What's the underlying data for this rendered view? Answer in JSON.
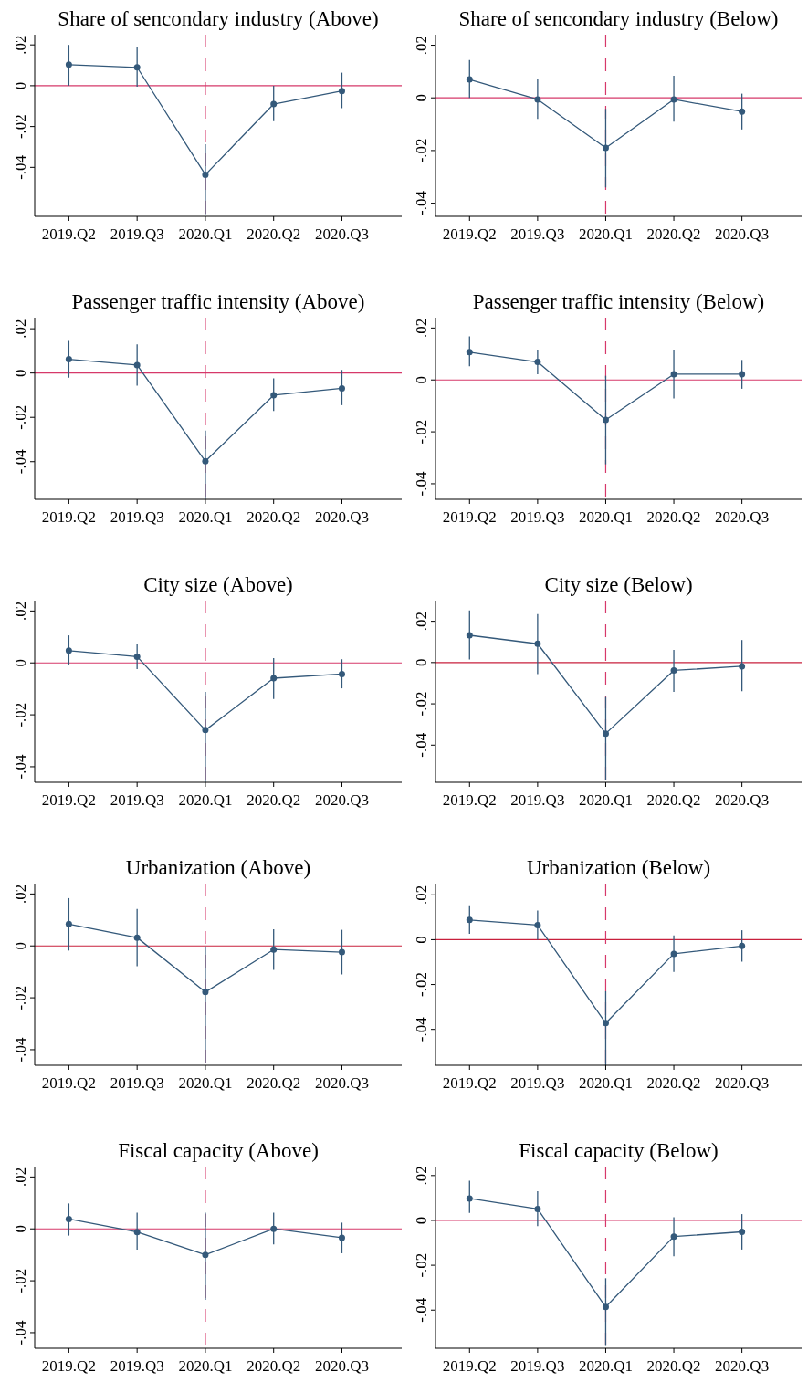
{
  "chart_data": [
    {
      "type": "line",
      "title": "Share of sencondary industry (Above)",
      "categories": [
        "2019.Q2",
        "2019.Q3",
        "2020.Q1",
        "2020.Q2",
        "2020.Q3"
      ],
      "ylim": [
        -0.064,
        0.025
      ],
      "yticks": [
        {
          "value": -0.04,
          "label": "-.04"
        },
        {
          "value": -0.02,
          "label": "-.02"
        },
        {
          "value": 0,
          "label": "0"
        },
        {
          "value": 0.02,
          "label": ".02"
        }
      ],
      "marker": "circle",
      "series": [
        {
          "color": "#34597a",
          "values": [
            0.0103,
            0.009,
            -0.0436,
            -0.009,
            -0.0026
          ],
          "errors": [
            [
              0,
              0.02
            ],
            [
              -0.0005,
              0.0187
            ],
            [
              -0.063,
              -0.0287
            ],
            [
              -0.0174,
              0
            ],
            [
              -0.011,
              0.0064
            ]
          ]
        }
      ],
      "ref_lines": [
        {
          "axis": "y",
          "value": 0,
          "color": "#d6386a"
        },
        {
          "axis": "x",
          "value": "2020.Q1",
          "color": "#d6386a",
          "line_style": "dashed"
        }
      ]
    },
    {
      "type": "line",
      "title": "Share of sencondary industry (Below)",
      "categories": [
        "2019.Q2",
        "2019.Q3",
        "2020.Q1",
        "2020.Q2",
        "2020.Q3"
      ],
      "ylim": [
        -0.045,
        0.024
      ],
      "yticks": [
        {
          "value": -0.04,
          "label": "-.04"
        },
        {
          "value": -0.02,
          "label": "-.02"
        },
        {
          "value": 0,
          "label": "0"
        },
        {
          "value": 0.02,
          "label": ".02"
        }
      ],
      "marker": "circle",
      "series": [
        {
          "color": "#34597a",
          "values": [
            0.007,
            -0.0006,
            -0.019,
            -0.0006,
            -0.0052
          ],
          "errors": [
            [
              0,
              0.0144
            ],
            [
              -0.008,
              0.007
            ],
            [
              -0.034,
              -0.0042
            ],
            [
              -0.009,
              0.0084
            ],
            [
              -0.012,
              0.0016
            ]
          ]
        }
      ],
      "ref_lines": [
        {
          "axis": "y",
          "value": 0,
          "color": "#d6386a"
        },
        {
          "axis": "x",
          "value": "2020.Q1",
          "color": "#d6386a",
          "line_style": "dashed"
        }
      ]
    },
    {
      "type": "line",
      "title": "Passenger traffic intensity (Above)",
      "categories": [
        "2019.Q2",
        "2019.Q3",
        "2020.Q1",
        "2020.Q2",
        "2020.Q3"
      ],
      "ylim": [
        -0.057,
        0.025
      ],
      "yticks": [
        {
          "value": -0.04,
          "label": "-.04"
        },
        {
          "value": -0.02,
          "label": "-.02"
        },
        {
          "value": 0,
          "label": "0"
        },
        {
          "value": 0.02,
          "label": ".02"
        }
      ],
      "marker": "circle",
      "series": [
        {
          "color": "#34597a",
          "values": [
            0.0062,
            0.0036,
            -0.0398,
            -0.01,
            -0.0069
          ],
          "errors": [
            [
              -0.0021,
              0.0145
            ],
            [
              -0.0057,
              0.0129
            ],
            [
              -0.057,
              -0.026
            ],
            [
              -0.0171,
              -0.0024
            ],
            [
              -0.0145,
              0.0014
            ]
          ]
        }
      ],
      "ref_lines": [
        {
          "axis": "y",
          "value": 0,
          "color": "#d6386a"
        },
        {
          "axis": "x",
          "value": "2020.Q1",
          "color": "#d6386a",
          "line_style": "dashed"
        }
      ]
    },
    {
      "type": "line",
      "title": "Passenger traffic intensity (Below)",
      "categories": [
        "2019.Q2",
        "2019.Q3",
        "2020.Q1",
        "2020.Q2",
        "2020.Q3"
      ],
      "ylim": [
        -0.046,
        0.024
      ],
      "yticks": [
        {
          "value": -0.04,
          "label": "-.04"
        },
        {
          "value": -0.02,
          "label": "-.02"
        },
        {
          "value": 0,
          "label": "0"
        },
        {
          "value": 0.02,
          "label": ".02"
        }
      ],
      "marker": "circle",
      "series": [
        {
          "color": "#34597a",
          "values": [
            0.0107,
            0.0069,
            -0.0154,
            0.0022,
            0.0022
          ],
          "errors": [
            [
              0.0053,
              0.0168
            ],
            [
              0.0022,
              0.0117
            ],
            [
              -0.0325,
              0.0016
            ],
            [
              -0.0071,
              0.0117
            ],
            [
              -0.0034,
              0.0077
            ]
          ]
        }
      ],
      "ref_lines": [
        {
          "axis": "y",
          "value": 0,
          "color": "#d6386a"
        },
        {
          "axis": "x",
          "value": "2020.Q1",
          "color": "#d6386a",
          "line_style": "dashed"
        }
      ]
    },
    {
      "type": "line",
      "title": "City size (Above)",
      "categories": [
        "2019.Q2",
        "2019.Q3",
        "2020.Q1",
        "2020.Q2",
        "2020.Q3"
      ],
      "ylim": [
        -0.046,
        0.024
      ],
      "yticks": [
        {
          "value": -0.04,
          "label": "-.04"
        },
        {
          "value": -0.02,
          "label": "-.02"
        },
        {
          "value": 0,
          "label": "0"
        },
        {
          "value": 0.02,
          "label": ".02"
        }
      ],
      "marker": "circle",
      "series": [
        {
          "color": "#34597a",
          "values": [
            0.0047,
            0.0024,
            -0.0259,
            -0.0059,
            -0.0043
          ],
          "errors": [
            [
              -0.0006,
              0.0106
            ],
            [
              -0.0024,
              0.0071
            ],
            [
              -0.046,
              -0.0112
            ],
            [
              -0.0139,
              0.0018
            ],
            [
              -0.0098,
              0.0014
            ]
          ]
        }
      ],
      "ref_lines": [
        {
          "axis": "y",
          "value": 0,
          "color": "#d6386a"
        },
        {
          "axis": "x",
          "value": "2020.Q1",
          "color": "#d6386a",
          "line_style": "dashed"
        }
      ]
    },
    {
      "type": "line",
      "title": "City size (Below)",
      "categories": [
        "2019.Q2",
        "2019.Q3",
        "2020.Q1",
        "2020.Q2",
        "2020.Q3"
      ],
      "ylim": [
        -0.058,
        0.03
      ],
      "yticks": [
        {
          "value": -0.04,
          "label": "-.04"
        },
        {
          "value": -0.02,
          "label": "-.02"
        },
        {
          "value": 0,
          "label": "0"
        },
        {
          "value": 0.02,
          "label": ".02"
        }
      ],
      "marker": "circle",
      "series": [
        {
          "color": "#34597a",
          "values": [
            0.0132,
            0.0091,
            -0.0344,
            -0.0038,
            -0.0018
          ],
          "errors": [
            [
              0.0015,
              0.0253
            ],
            [
              -0.0056,
              0.0235
            ],
            [
              -0.057,
              -0.0167
            ],
            [
              -0.0142,
              0.0061
            ],
            [
              -0.0139,
              0.0109
            ]
          ]
        }
      ],
      "ref_lines": [
        {
          "axis": "y",
          "value": 0,
          "color": "#c8203c"
        },
        {
          "axis": "x",
          "value": "2020.Q1",
          "color": "#d6386a",
          "line_style": "dashed"
        }
      ]
    },
    {
      "type": "line",
      "title": "Urbanization (Above)",
      "categories": [
        "2019.Q2",
        "2019.Q3",
        "2020.Q1",
        "2020.Q2",
        "2020.Q3"
      ],
      "ylim": [
        -0.046,
        0.024
      ],
      "yticks": [
        {
          "value": -0.04,
          "label": "-.04"
        },
        {
          "value": -0.02,
          "label": "-.02"
        },
        {
          "value": 0,
          "label": "0"
        },
        {
          "value": 0.02,
          "label": ".02"
        }
      ],
      "marker": "circle",
      "series": [
        {
          "color": "#34597a",
          "values": [
            0.0084,
            0.0032,
            -0.0178,
            -0.0014,
            -0.0024
          ],
          "errors": [
            [
              -0.0018,
              0.0184
            ],
            [
              -0.0078,
              0.0142
            ],
            [
              -0.045,
              -0.0002
            ],
            [
              -0.0092,
              0.0064
            ],
            [
              -0.011,
              0.0062
            ]
          ]
        }
      ],
      "ref_lines": [
        {
          "axis": "y",
          "value": 0,
          "color": "#c8203c"
        },
        {
          "axis": "x",
          "value": "2020.Q1",
          "color": "#d6386a",
          "line_style": "dashed"
        }
      ]
    },
    {
      "type": "line",
      "title": "Urbanization (Below)",
      "categories": [
        "2019.Q2",
        "2019.Q3",
        "2020.Q1",
        "2020.Q2",
        "2020.Q3"
      ],
      "ylim": [
        -0.056,
        0.025
      ],
      "yticks": [
        {
          "value": -0.04,
          "label": "-.04"
        },
        {
          "value": -0.02,
          "label": "-.02"
        },
        {
          "value": 0,
          "label": "0"
        },
        {
          "value": 0.02,
          "label": ".02"
        }
      ],
      "marker": "circle",
      "series": [
        {
          "color": "#34597a",
          "values": [
            0.0088,
            0.0065,
            -0.0372,
            -0.0063,
            -0.0028
          ],
          "errors": [
            [
              0.0026,
              0.0153
            ],
            [
              0,
              0.013
            ],
            [
              -0.056,
              -0.023
            ],
            [
              -0.0144,
              0.0019
            ],
            [
              -0.0098,
              0.0042
            ]
          ]
        }
      ],
      "ref_lines": [
        {
          "axis": "y",
          "value": 0,
          "color": "#c8203c"
        },
        {
          "axis": "x",
          "value": "2020.Q1",
          "color": "#d6386a",
          "line_style": "dashed"
        }
      ]
    },
    {
      "type": "line",
      "title": "Fiscal capacity (Above)",
      "categories": [
        "2019.Q2",
        "2019.Q3",
        "2020.Q1",
        "2020.Q2",
        "2020.Q3"
      ],
      "ylim": [
        -0.046,
        0.024
      ],
      "yticks": [
        {
          "value": -0.04,
          "label": "-.04"
        },
        {
          "value": -0.02,
          "label": "-.02"
        },
        {
          "value": 0,
          "label": "0"
        },
        {
          "value": 0.02,
          "label": ".02"
        }
      ],
      "marker": "circle",
      "series": [
        {
          "color": "#34597a",
          "values": [
            0.0038,
            -0.0012,
            -0.01,
            0,
            -0.0034
          ],
          "errors": [
            [
              -0.0026,
              0.0098
            ],
            [
              -0.008,
              0.0062
            ],
            [
              -0.0274,
              0.0062
            ],
            [
              -0.006,
              0.0062
            ],
            [
              -0.0094,
              0.0024
            ]
          ]
        }
      ],
      "ref_lines": [
        {
          "axis": "y",
          "value": 0,
          "color": "#d6386a"
        },
        {
          "axis": "x",
          "value": "2020.Q1",
          "color": "#d6386a",
          "line_style": "dashed"
        }
      ]
    },
    {
      "type": "line",
      "title": "Fiscal capacity (Below)",
      "categories": [
        "2019.Q2",
        "2019.Q3",
        "2020.Q1",
        "2020.Q2",
        "2020.Q3"
      ],
      "ylim": [
        -0.057,
        0.024
      ],
      "yticks": [
        {
          "value": -0.04,
          "label": "-.04"
        },
        {
          "value": -0.02,
          "label": "-.02"
        },
        {
          "value": 0,
          "label": "0"
        },
        {
          "value": 0.02,
          "label": ".02"
        }
      ],
      "marker": "circle",
      "series": [
        {
          "color": "#34597a",
          "values": [
            0.0098,
            0.0051,
            -0.0386,
            -0.0072,
            -0.0051
          ],
          "errors": [
            [
              0.0033,
              0.0177
            ],
            [
              -0.0026,
              0.013
            ],
            [
              -0.056,
              -0.0258
            ],
            [
              -0.016,
              0.0014
            ],
            [
              -0.013,
              0.0028
            ]
          ]
        }
      ],
      "ref_lines": [
        {
          "axis": "y",
          "value": 0,
          "color": "#d6386a"
        },
        {
          "axis": "x",
          "value": "2020.Q1",
          "color": "#d6386a",
          "line_style": "dashed"
        }
      ]
    }
  ]
}
